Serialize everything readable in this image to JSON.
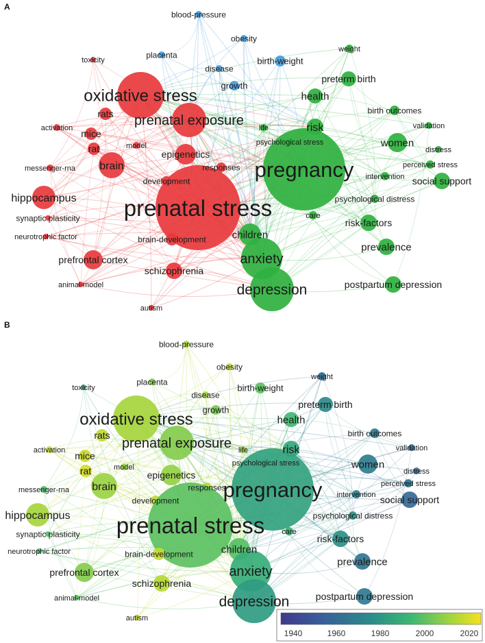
{
  "panels": [
    {
      "label": "A",
      "coloring": "cluster"
    },
    {
      "label": "B",
      "coloring": "average publication year"
    }
  ],
  "cluster_colors": {
    "red": "#e8393d",
    "green": "#2fb13f",
    "blue": "#4a9bd9"
  },
  "terms": [
    {
      "text": "blood-pressure",
      "cluster": "blue",
      "year": 2008,
      "weight": 1
    },
    {
      "text": "obesity",
      "cluster": "blue",
      "year": 2010,
      "weight": 1
    },
    {
      "text": "placenta",
      "cluster": "blue",
      "year": 2000,
      "weight": 1
    },
    {
      "text": "toxicity",
      "cluster": "red",
      "year": 1978,
      "weight": 1
    },
    {
      "text": "disease",
      "cluster": "blue",
      "year": 2005,
      "weight": 1
    },
    {
      "text": "birth-weight",
      "cluster": "blue",
      "year": 1993,
      "weight": 2
    },
    {
      "text": "weight",
      "cluster": "green",
      "year": 1958,
      "weight": 1
    },
    {
      "text": "growth",
      "cluster": "blue",
      "year": 1998,
      "weight": 2
    },
    {
      "text": "preterm birth",
      "cluster": "green",
      "year": 1968,
      "weight": 3
    },
    {
      "text": "oxidative stress",
      "cluster": "red",
      "year": 2006,
      "weight": 5
    },
    {
      "text": "health",
      "cluster": "green",
      "year": 1988,
      "weight": 3
    },
    {
      "text": "birth outcomes",
      "cluster": "green",
      "year": 1962,
      "weight": 2
    },
    {
      "text": "prenatal exposure",
      "cluster": "red",
      "year": 2000,
      "weight": 4
    },
    {
      "text": "life",
      "cluster": "green",
      "year": 2005,
      "weight": 1
    },
    {
      "text": "risk",
      "cluster": "green",
      "year": 1980,
      "weight": 3
    },
    {
      "text": "validation",
      "cluster": "green",
      "year": 1958,
      "weight": 1
    },
    {
      "text": "activation",
      "cluster": "red",
      "year": 2012,
      "weight": 1
    },
    {
      "text": "rats",
      "cluster": "red",
      "year": 2012,
      "weight": 2
    },
    {
      "text": "psychological stress",
      "cluster": "green",
      "year": 1995,
      "weight": 1
    },
    {
      "text": "women",
      "cluster": "green",
      "year": 1963,
      "weight": 3
    },
    {
      "text": "distress",
      "cluster": "green",
      "year": 1955,
      "weight": 1
    },
    {
      "text": "mice",
      "cluster": "red",
      "year": 2014,
      "weight": 2
    },
    {
      "text": "rat",
      "cluster": "red",
      "year": 2016,
      "weight": 2
    },
    {
      "text": "model",
      "cluster": "red",
      "year": 2003,
      "weight": 1
    },
    {
      "text": "epigenetics",
      "cluster": "red",
      "year": 2003,
      "weight": 2
    },
    {
      "text": "pregnancy",
      "cluster": "green",
      "year": 1978,
      "weight": 6
    },
    {
      "text": "perceived stress",
      "cluster": "green",
      "year": 1960,
      "weight": 1
    },
    {
      "text": "brain",
      "cluster": "red",
      "year": 2004,
      "weight": 3
    },
    {
      "text": "responses",
      "cluster": "red",
      "year": 2010,
      "weight": 1
    },
    {
      "text": "intervention",
      "cluster": "green",
      "year": 1965,
      "weight": 1
    },
    {
      "text": "messenger-rna",
      "cluster": "red",
      "year": 1990,
      "weight": 1
    },
    {
      "text": "development",
      "cluster": "red",
      "year": 2012,
      "weight": 1
    },
    {
      "text": "social support",
      "cluster": "green",
      "year": 1955,
      "weight": 2
    },
    {
      "text": "hippocampus",
      "cluster": "red",
      "year": 2006,
      "weight": 3
    },
    {
      "text": "psychological distress",
      "cluster": "green",
      "year": 1972,
      "weight": 1
    },
    {
      "text": "prenatal stress",
      "cluster": "red",
      "year": 1993,
      "weight": 6
    },
    {
      "text": "synaptic plasticity",
      "cluster": "red",
      "year": 1992,
      "weight": 1
    },
    {
      "text": "care",
      "cluster": "green",
      "year": 1985,
      "weight": 1
    },
    {
      "text": "risk-factors",
      "cluster": "green",
      "year": 1970,
      "weight": 2
    },
    {
      "text": "neurotrophic factor",
      "cluster": "red",
      "year": 1990,
      "weight": 1
    },
    {
      "text": "brain-development",
      "cluster": "red",
      "year": 2013,
      "weight": 2
    },
    {
      "text": "children",
      "cluster": "green",
      "year": 1992,
      "weight": 3
    },
    {
      "text": "prefrontal cortex",
      "cluster": "red",
      "year": 2000,
      "weight": 3
    },
    {
      "text": "prevalence",
      "cluster": "green",
      "year": 1960,
      "weight": 3
    },
    {
      "text": "anxiety",
      "cluster": "green",
      "year": 1983,
      "weight": 4
    },
    {
      "text": "schizophrenia",
      "cluster": "red",
      "year": 2010,
      "weight": 3
    },
    {
      "text": "animal-model",
      "cluster": "red",
      "year": 1992,
      "weight": 1
    },
    {
      "text": "postpartum depression",
      "cluster": "green",
      "year": 1962,
      "weight": 3
    },
    {
      "text": "depression",
      "cluster": "green",
      "year": 1975,
      "weight": 5
    },
    {
      "text": "autism",
      "cluster": "red",
      "year": 2015,
      "weight": 1
    }
  ],
  "colorbar": {
    "ticks": [
      "1940",
      "1960",
      "1980",
      "2000",
      "2020"
    ],
    "range": [
      1932,
      2024
    ]
  }
}
